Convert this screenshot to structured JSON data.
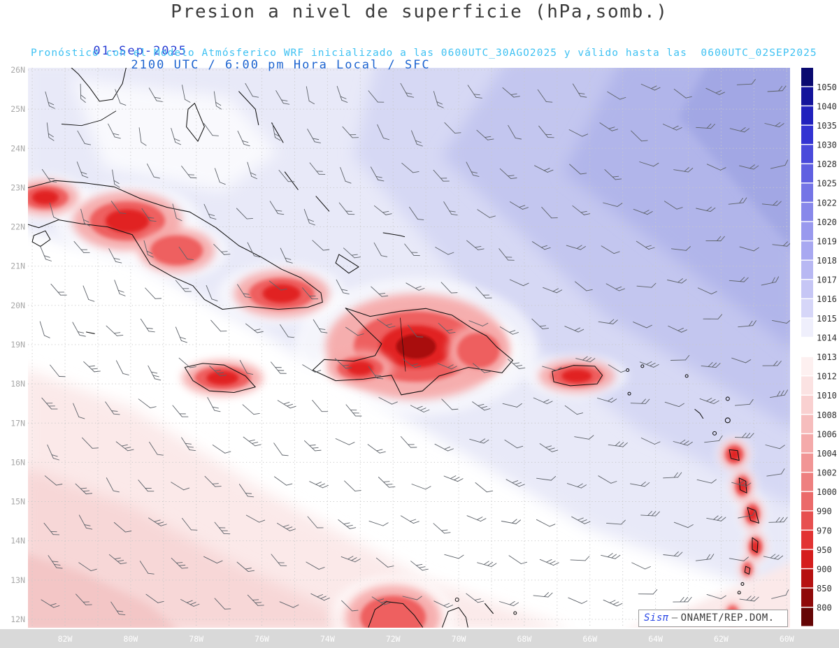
{
  "title": "Presion a nivel de superficie (hPa,somb.)",
  "subtitle": {
    "date": "01-Sep-2025",
    "time": "2100 UTC / 6:00 pm Hora Local / SFC",
    "forecast": "Pronóstico con el Modelo Atmósferico WRF inicializado a las 0600UTC_30AGO2025 y válido hasta las  0600UTC_02SEP2025"
  },
  "credit": {
    "brand": "Sisπ",
    "separator": "–",
    "org": "ONAMET/REP.DOM."
  },
  "axes": {
    "lat_labels": [
      "26N",
      "25N",
      "24N",
      "23N",
      "22N",
      "21N",
      "20N",
      "19N",
      "18N",
      "17N",
      "16N",
      "15N",
      "14N",
      "13N",
      "12N"
    ],
    "lon_labels": [
      "82W",
      "80W",
      "78W",
      "76W",
      "74W",
      "72W",
      "70W",
      "68W",
      "66W",
      "64W",
      "62W",
      "60W"
    ]
  },
  "chart_data": {
    "type": "heatmap",
    "variable": "Presión a nivel de superficie",
    "units": "hPa",
    "level": "SFC",
    "model": "WRF",
    "init_time": "0600UTC_30AGO2025",
    "valid_until": "0600UTC_02SEP2025",
    "valid_date": "01-Sep-2025",
    "valid_time": "2100 UTC / 6:00 pm Hora Local",
    "map_extent": {
      "lon_west_deg": 83.1,
      "lon_east_deg": 59.9,
      "lat_south_deg": 12.0,
      "lat_north_deg": 26.0
    },
    "grid_interval_deg": 1,
    "colorbar": {
      "labels": [
        1050,
        1040,
        1035,
        1030,
        1028,
        1025,
        1022,
        1020,
        1019,
        1018,
        1017,
        1016,
        1015,
        1014,
        1013,
        1012,
        1010,
        1008,
        1006,
        1004,
        1002,
        1000,
        990,
        970,
        950,
        900,
        850,
        800
      ],
      "segment_colors": [
        "#0a0a70",
        "#14149b",
        "#2121bd",
        "#3333d2",
        "#4a4adb",
        "#6060e1",
        "#7575e6",
        "#8888ea",
        "#9999ee",
        "#a8a8f1",
        "#b8b8f3",
        "#c6c6f5",
        "#d6d6f8",
        "#efeffc",
        "#ffffff",
        "#fdf0f0",
        "#fbe2e2",
        "#f9d0d0",
        "#f6bdbd",
        "#f4aaaa",
        "#f19595",
        "#ee8080",
        "#eb6a6a",
        "#e75050",
        "#e23333",
        "#d51d1d",
        "#b61111",
        "#8f0909",
        "#650505"
      ]
    },
    "shading_colors": {
      "lavender": "#e8e9f8",
      "blue_light": "#d6d8f4",
      "blue_mid": "#c3c6ef",
      "blue_deep": "#b1b5ea",
      "blue_corner": "#a2a7e4",
      "white": "#ffffff",
      "pink_light": "#fbe9e9",
      "pink_mid": "#f7d7d7",
      "pink_deep": "#f3c6c6",
      "red_halo": "#f6a8a8",
      "red_mid": "#ee5c5c",
      "red_core": "#e12020",
      "red_dark": "#a90f0f"
    },
    "pressure_features": {
      "high_pressure_region": {
        "location": "northeast quadrant (western Atlantic)",
        "approx_hPa": "1016-1022"
      },
      "low_pressure_region": {
        "location": "southwest Caribbean",
        "approx_hPa": "1008-1012"
      },
      "terrain_lows": [
        {
          "name": "western-cuba",
          "lon_w": 82.6,
          "lat": 22.75,
          "rx": 0.7,
          "ry": 0.3,
          "strength": "strong"
        },
        {
          "name": "central-cuba",
          "lon_w": 80.1,
          "lat": 22.15,
          "rx": 1.15,
          "ry": 0.5,
          "strength": "strong"
        },
        {
          "name": "camaguey-cuba",
          "lon_w": 78.6,
          "lat": 21.4,
          "rx": 0.8,
          "ry": 0.38,
          "strength": "moderate"
        },
        {
          "name": "eastern-cuba",
          "lon_w": 75.4,
          "lat": 20.3,
          "rx": 1.0,
          "ry": 0.4,
          "strength": "strong"
        },
        {
          "name": "jamaica",
          "lon_w": 77.2,
          "lat": 18.15,
          "rx": 0.85,
          "ry": 0.3,
          "strength": "strong"
        },
        {
          "name": "hispaniola",
          "lon_w": 71.3,
          "lat": 18.95,
          "rx": 1.9,
          "ry": 0.9,
          "strength": "extreme"
        },
        {
          "name": "hispaniola-sw",
          "lon_w": 73.0,
          "lat": 18.4,
          "rx": 0.7,
          "ry": 0.3,
          "strength": "strong"
        },
        {
          "name": "hispaniola-east",
          "lon_w": 69.4,
          "lat": 18.85,
          "rx": 0.65,
          "ry": 0.45,
          "strength": "moderate"
        },
        {
          "name": "puerto-rico",
          "lon_w": 66.4,
          "lat": 18.2,
          "rx": 0.8,
          "ry": 0.28,
          "strength": "strong"
        },
        {
          "name": "guadeloupe",
          "lon_w": 61.6,
          "lat": 16.2,
          "rx": 0.28,
          "ry": 0.24,
          "strength": "strong"
        },
        {
          "name": "dominica",
          "lon_w": 61.35,
          "lat": 15.4,
          "rx": 0.22,
          "ry": 0.26,
          "strength": "strong"
        },
        {
          "name": "martinique",
          "lon_w": 61.05,
          "lat": 14.68,
          "rx": 0.22,
          "ry": 0.26,
          "strength": "strong"
        },
        {
          "name": "st-lucia",
          "lon_w": 60.95,
          "lat": 13.85,
          "rx": 0.2,
          "ry": 0.24,
          "strength": "strong"
        },
        {
          "name": "st-vincent",
          "lon_w": 61.2,
          "lat": 13.28,
          "rx": 0.15,
          "ry": 0.18,
          "strength": "moderate"
        },
        {
          "name": "grenada",
          "lon_w": 61.65,
          "lat": 12.15,
          "rx": 0.18,
          "ry": 0.2,
          "strength": "moderate"
        },
        {
          "name": "guajira-coast",
          "lon_w": 72.0,
          "lat": 12.05,
          "rx": 1.0,
          "ry": 0.55,
          "strength": "moderate"
        }
      ]
    },
    "wind_barbs": {
      "grid_spacing_deg": 1,
      "color": "gray"
    }
  }
}
